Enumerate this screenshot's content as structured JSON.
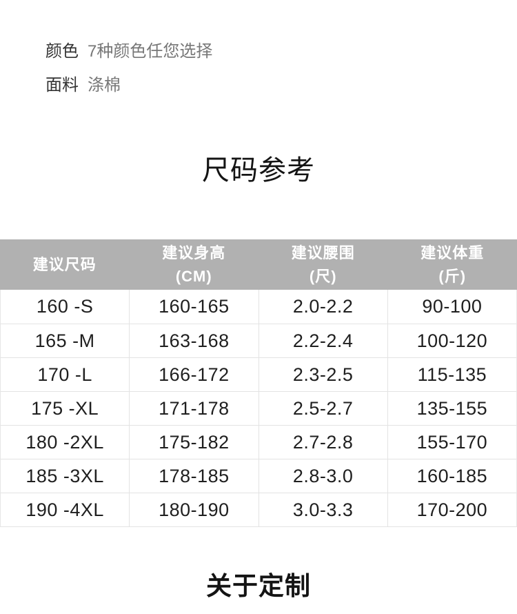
{
  "colors": {
    "header_bg": "#b1b1b1",
    "header_text": "#ffffff",
    "divider": "#e3e3e3",
    "body_text": "#1f1f1f",
    "label_text": "#333333",
    "value_text": "#777777",
    "page_bg": "#ffffff"
  },
  "product_info": {
    "rows": [
      {
        "label": "颜色",
        "value": "7种颜色任您选择"
      },
      {
        "label": "面料",
        "value": "涤棉"
      }
    ]
  },
  "chart_data": {
    "type": "table",
    "title": "尺码参考",
    "columns": [
      {
        "label": "建议尺码",
        "unit": ""
      },
      {
        "label": "建议身高",
        "unit": "(CM)"
      },
      {
        "label": "建议腰围",
        "unit": "(尺)"
      },
      {
        "label": "建议体重",
        "unit": "(斤)"
      }
    ],
    "rows": [
      [
        "160 -S",
        "160-165",
        "2.0-2.2",
        "90-100"
      ],
      [
        "165 -M",
        "163-168",
        "2.2-2.4",
        "100-120"
      ],
      [
        "170 -L",
        "166-172",
        "2.3-2.5",
        "115-135"
      ],
      [
        "175 -XL",
        "171-178",
        "2.5-2.7",
        "135-155"
      ],
      [
        "180 -2XL",
        "175-182",
        "2.7-2.8",
        "155-170"
      ],
      [
        "185 -3XL",
        "178-185",
        "2.8-3.0",
        "160-185"
      ],
      [
        "190 -4XL",
        "180-190",
        "3.0-3.3",
        "170-200"
      ]
    ]
  },
  "footer": {
    "title": "关于定制"
  }
}
